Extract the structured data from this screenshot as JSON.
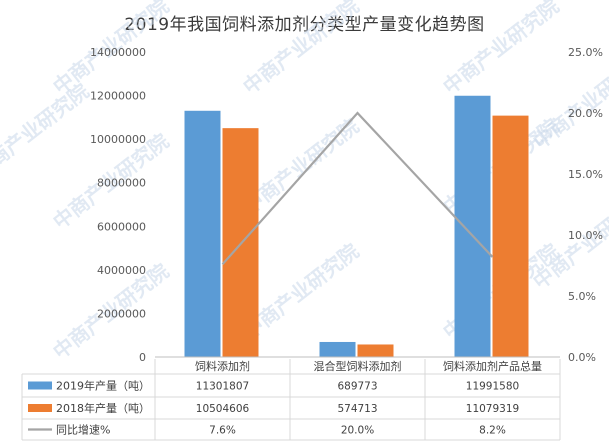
{
  "title": "2019年我国饲料添加剂分类型产量变化趋势图",
  "watermark": "中商产业研究院",
  "colors": {
    "s2019": "#5b9bd5",
    "s2018": "#ed7d31",
    "line": "#a5a5a5",
    "grid": "#d9d9d9"
  },
  "chart_data": {
    "type": "bar",
    "categories": [
      "饲料添加剂",
      "混合型饲料添加剂",
      "饲料添加剂产品总量"
    ],
    "series": [
      {
        "name": "2019年产量（吨）",
        "values": [
          11301807,
          689773,
          11991580
        ],
        "cells": [
          "11301807",
          "689773",
          "11991580"
        ],
        "kind": "bar"
      },
      {
        "name": "2018年产量（吨）",
        "values": [
          10504606,
          574713,
          11079319
        ],
        "cells": [
          "10504606",
          "574713",
          "11079319"
        ],
        "kind": "bar"
      },
      {
        "name": "同比增速%",
        "values": [
          7.6,
          20.0,
          8.2
        ],
        "cells": [
          "7.6%",
          "20.0%",
          "8.2%"
        ],
        "kind": "line",
        "axis": "right"
      }
    ],
    "ylim": [
      0,
      14000000
    ],
    "y2lim": [
      0,
      25
    ],
    "y_ticks": [
      "0",
      "2000000",
      "4000000",
      "6000000",
      "8000000",
      "10000000",
      "12000000",
      "14000000"
    ],
    "y2_ticks": [
      "0.0%",
      "5.0%",
      "10.0%",
      "15.0%",
      "20.0%",
      "25.0%"
    ],
    "legend": "data-table",
    "grid": false
  }
}
